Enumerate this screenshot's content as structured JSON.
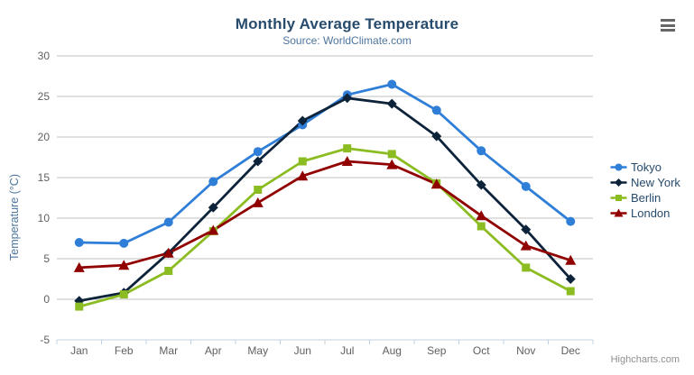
{
  "header": {
    "title": "Monthly Average Temperature",
    "subtitle": "Source: WorldClimate.com"
  },
  "credits": {
    "label": "Highcharts.com"
  },
  "icons": {
    "export_menu": "hamburger-menu"
  },
  "colors": {
    "title": "#274b6d",
    "subtitle": "#4d759e",
    "axis_label": "#606060",
    "axis_title": "#4d759e",
    "grid_line": "#c0c0c0",
    "axis_line": "#c0d0e0",
    "legend_text": "#274b6d",
    "credits": "#909090"
  },
  "chart_data": {
    "type": "line",
    "title": "Monthly Average Temperature",
    "subtitle": "Source: WorldClimate.com",
    "xlabel": "",
    "ylabel": "Temperature (°C)",
    "categories": [
      "Jan",
      "Feb",
      "Mar",
      "Apr",
      "May",
      "Jun",
      "Jul",
      "Aug",
      "Sep",
      "Oct",
      "Nov",
      "Dec"
    ],
    "ylim": [
      -5,
      30
    ],
    "ytick_interval": 5,
    "grid": true,
    "legend_position": "right-middle",
    "series": [
      {
        "name": "Tokyo",
        "color": "#2f7ed8",
        "marker": "circle",
        "values": [
          7.0,
          6.9,
          9.5,
          14.5,
          18.2,
          21.5,
          25.2,
          26.5,
          23.3,
          18.3,
          13.9,
          9.6
        ]
      },
      {
        "name": "New York",
        "color": "#0d233a",
        "marker": "diamond",
        "values": [
          -0.2,
          0.8,
          5.7,
          11.3,
          17.0,
          22.0,
          24.8,
          24.1,
          20.1,
          14.1,
          8.6,
          2.5
        ]
      },
      {
        "name": "Berlin",
        "color": "#8bbc21",
        "marker": "square",
        "values": [
          -0.9,
          0.6,
          3.5,
          8.4,
          13.5,
          17.0,
          18.6,
          17.9,
          14.3,
          9.0,
          3.9,
          1.0
        ]
      },
      {
        "name": "London",
        "color": "#910000",
        "marker": "triangle",
        "values": [
          3.9,
          4.2,
          5.7,
          8.5,
          11.9,
          15.2,
          17.0,
          16.6,
          14.2,
          10.3,
          6.6,
          4.8
        ]
      }
    ]
  }
}
